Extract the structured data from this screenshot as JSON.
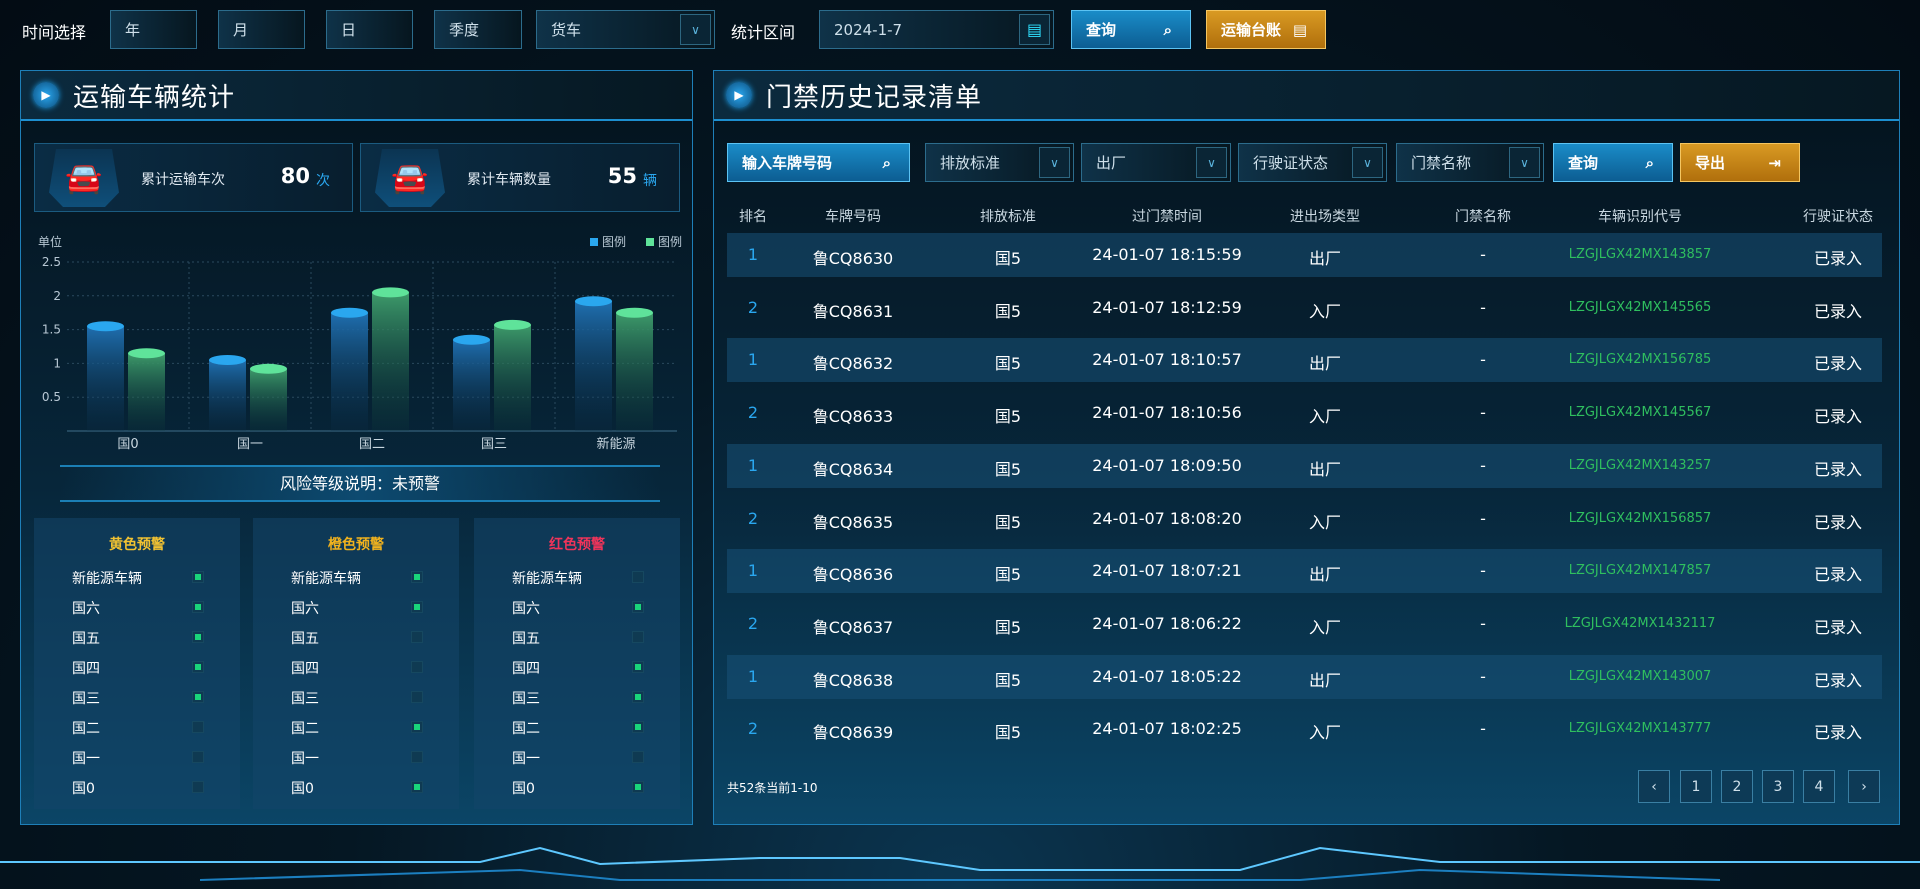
{
  "topbar": {
    "time_label": "时间选择",
    "year": "年",
    "month": "月",
    "day": "日",
    "quarter": "季度",
    "vehicle_type": "货车",
    "range_label": "统计区间",
    "date": "2024-1-7",
    "query": "查询",
    "ledger": "运输台账"
  },
  "left": {
    "title": "运输车辆统计",
    "stats": [
      {
        "label": "累计运输车次",
        "value": "80",
        "unit": "次"
      },
      {
        "label": "累计车辆数量",
        "value": "55",
        "unit": "辆"
      }
    ],
    "risk": "风险等级说明：未预警",
    "warnings": [
      {
        "title": "黄色预警",
        "color": "#f1c232",
        "items": [
          {
            "label": "新能源车辆",
            "on": true
          },
          {
            "label": "国六",
            "on": true
          },
          {
            "label": "国五",
            "on": true
          },
          {
            "label": "国四",
            "on": true
          },
          {
            "label": "国三",
            "on": true
          },
          {
            "label": "国二",
            "on": false
          },
          {
            "label": "国一",
            "on": false
          },
          {
            "label": "国0",
            "on": false
          }
        ]
      },
      {
        "title": "橙色预警",
        "color": "#f0b21e",
        "items": [
          {
            "label": "新能源车辆",
            "on": true
          },
          {
            "label": "国六",
            "on": true
          },
          {
            "label": "国五",
            "on": false
          },
          {
            "label": "国四",
            "on": false
          },
          {
            "label": "国三",
            "on": false
          },
          {
            "label": "国二",
            "on": true
          },
          {
            "label": "国一",
            "on": false
          },
          {
            "label": "国0",
            "on": true
          }
        ]
      },
      {
        "title": "红色预警",
        "color": "#f0345a",
        "items": [
          {
            "label": "新能源车辆",
            "on": false
          },
          {
            "label": "国六",
            "on": true
          },
          {
            "label": "国五",
            "on": false
          },
          {
            "label": "国四",
            "on": true
          },
          {
            "label": "国三",
            "on": true
          },
          {
            "label": "国二",
            "on": true
          },
          {
            "label": "国一",
            "on": false
          },
          {
            "label": "国0",
            "on": true
          }
        ]
      }
    ]
  },
  "chart_data": {
    "type": "bar",
    "ylabel": "单位",
    "categories": [
      "国0",
      "国一",
      "国二",
      "国三",
      "新能源"
    ],
    "series": [
      {
        "name": "图例",
        "color": "#2aa7ef",
        "values": [
          1.55,
          1.05,
          1.75,
          1.35,
          1.92
        ]
      },
      {
        "name": "图例",
        "color": "#5fe39a",
        "values": [
          1.15,
          0.92,
          2.05,
          1.57,
          1.75
        ]
      }
    ],
    "yticks": [
      "0.5",
      "1",
      "1.5",
      "2",
      "2.5"
    ],
    "ylim": [
      0,
      2.5
    ],
    "grid": true,
    "legend": "top-right"
  },
  "right": {
    "title": "门禁历史记录清单",
    "filters": {
      "plate_placeholder": "输入车牌号码",
      "emission": "排放标准",
      "direction": "出厂",
      "license": "行驶证状态",
      "gate": "门禁名称",
      "query": "查询",
      "export": "导出"
    },
    "columns": [
      "排名",
      "车牌号码",
      "排放标准",
      "过门禁时间",
      "进出场类型",
      "门禁名称",
      "车辆识别代号",
      "行驶证状态"
    ],
    "rows": [
      [
        "1",
        "鲁CQ8630",
        "国5",
        "24-01-07 18:15:59",
        "出厂",
        "-",
        "LZGJLGX42MX143857",
        "已录入"
      ],
      [
        "2",
        "鲁CQ8631",
        "国5",
        "24-01-07 18:12:59",
        "入厂",
        "-",
        "LZGJLGX42MX145565",
        "已录入"
      ],
      [
        "1",
        "鲁CQ8632",
        "国5",
        "24-01-07 18:10:57",
        "出厂",
        "-",
        "LZGJLGX42MX156785",
        "已录入"
      ],
      [
        "2",
        "鲁CQ8633",
        "国5",
        "24-01-07 18:10:56",
        "入厂",
        "-",
        "LZGJLGX42MX145567",
        "已录入"
      ],
      [
        "1",
        "鲁CQ8634",
        "国5",
        "24-01-07 18:09:50",
        "出厂",
        "-",
        "LZGJLGX42MX143257",
        "已录入"
      ],
      [
        "2",
        "鲁CQ8635",
        "国5",
        "24-01-07 18:08:20",
        "入厂",
        "-",
        "LZGJLGX42MX156857",
        "已录入"
      ],
      [
        "1",
        "鲁CQ8636",
        "国5",
        "24-01-07 18:07:21",
        "出厂",
        "-",
        "LZGJLGX42MX147857",
        "已录入"
      ],
      [
        "2",
        "鲁CQ8637",
        "国5",
        "24-01-07 18:06:22",
        "入厂",
        "-",
        "LZGJLGX42MX1432117",
        "已录入"
      ],
      [
        "1",
        "鲁CQ8638",
        "国5",
        "24-01-07 18:05:22",
        "出厂",
        "-",
        "LZGJLGX42MX143007",
        "已录入"
      ],
      [
        "2",
        "鲁CQ8639",
        "国5",
        "24-01-07 18:02:25",
        "入厂",
        "-",
        "LZGJLGX42MX143777",
        "已录入"
      ]
    ],
    "footer": "共52条当前1-10",
    "pages": {
      "prev": "‹",
      "items": [
        "1",
        "2",
        "3",
        "4"
      ],
      "next": "›"
    }
  }
}
